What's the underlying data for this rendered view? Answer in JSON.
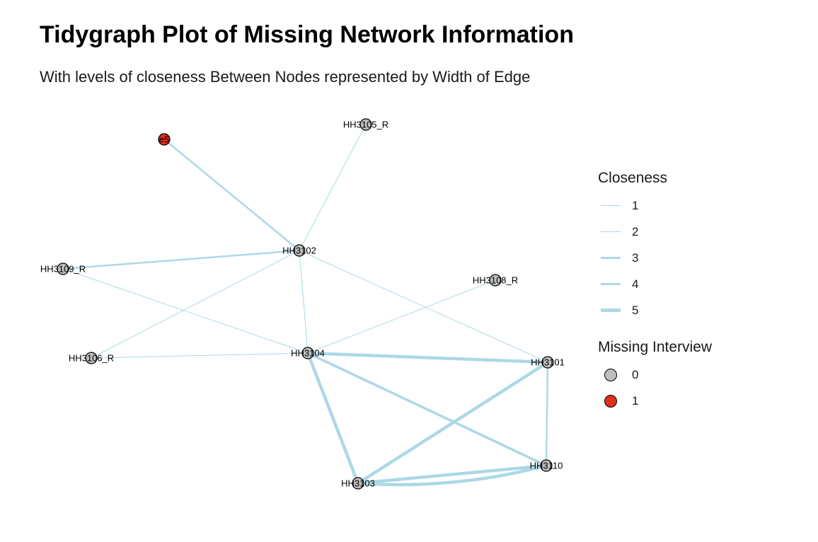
{
  "title": "Tidygraph Plot of Missing Network Information",
  "subtitle": "With levels of closeness Between Nodes represented by Width of Edge",
  "colors": {
    "edge": "#add8e6",
    "missing_0": "#bebebe",
    "missing_1": "#e0301e",
    "node_stroke": "#000000"
  },
  "nodes": [
    {
      "id": "e5",
      "label": "e5",
      "missing": 1
    },
    {
      "id": "HH3105_R",
      "label": "HH3105_R",
      "missing": 0
    },
    {
      "id": "HH3102",
      "label": "HH3102",
      "missing": 0
    },
    {
      "id": "HH3109_R",
      "label": "HH3109_R",
      "missing": 0
    },
    {
      "id": "HH3108_R",
      "label": "HH3108_R",
      "missing": 0
    },
    {
      "id": "HH3106_R",
      "label": "HH3106_R",
      "missing": 0
    },
    {
      "id": "HH3104",
      "label": "HH3104",
      "missing": 0
    },
    {
      "id": "HH3101",
      "label": "HH3101",
      "missing": 0
    },
    {
      "id": "HH3110",
      "label": "HH3110",
      "missing": 0
    },
    {
      "id": "HH3103",
      "label": "HH3103",
      "missing": 0
    }
  ],
  "edges": [
    {
      "from": "e5",
      "to": "HH3102",
      "closeness": 3
    },
    {
      "from": "HH3105_R",
      "to": "HH3102",
      "closeness": 1
    },
    {
      "from": "HH3109_R",
      "to": "HH3102",
      "closeness": 3
    },
    {
      "from": "HH3109_R",
      "to": "HH3104",
      "closeness": 1
    },
    {
      "from": "HH3106_R",
      "to": "HH3102",
      "closeness": 1
    },
    {
      "from": "HH3106_R",
      "to": "HH3104",
      "closeness": 1
    },
    {
      "from": "HH3102",
      "to": "HH3104",
      "closeness": 1
    },
    {
      "from": "HH3102",
      "to": "HH3101",
      "closeness": 1
    },
    {
      "from": "HH3108_R",
      "to": "HH3104",
      "closeness": 1
    },
    {
      "from": "HH3104",
      "to": "HH3101",
      "closeness": 5
    },
    {
      "from": "HH3104",
      "to": "HH3110",
      "closeness": 4
    },
    {
      "from": "HH3104",
      "to": "HH3103",
      "closeness": 5
    },
    {
      "from": "HH3103",
      "to": "HH3101",
      "closeness": 5
    },
    {
      "from": "HH3101",
      "to": "HH3110",
      "closeness": 3
    },
    {
      "from": "HH3103",
      "to": "HH3110",
      "closeness": 5
    },
    {
      "from": "HH3103",
      "to": "HH3110",
      "closeness": 5
    }
  ],
  "legend": {
    "closeness_title": "Closeness",
    "closeness_items": [
      {
        "label": "1",
        "value": 1
      },
      {
        "label": "2",
        "value": 2
      },
      {
        "label": "3",
        "value": 3
      },
      {
        "label": "4",
        "value": 4
      },
      {
        "label": "5",
        "value": 5
      }
    ],
    "missing_title": "Missing Interview",
    "missing_items": [
      {
        "label": "0",
        "value": 0
      },
      {
        "label": "1",
        "value": 1
      }
    ]
  }
}
